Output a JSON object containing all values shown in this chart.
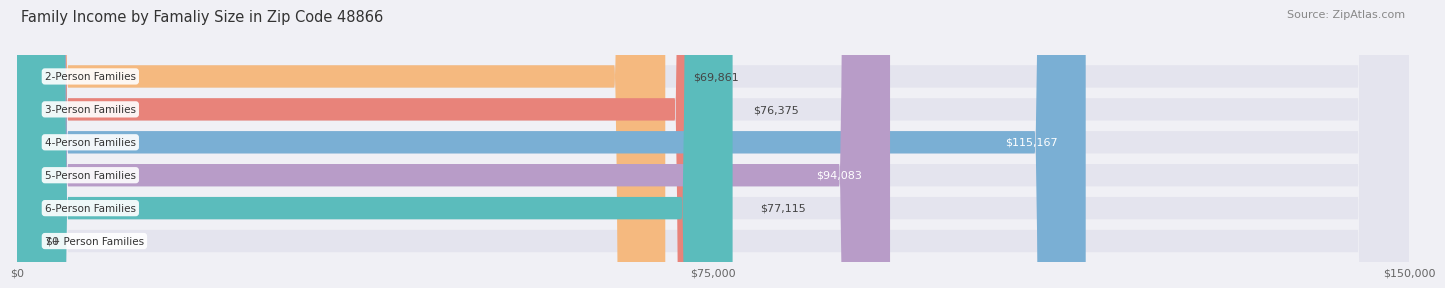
{
  "title": "Family Income by Famaliy Size in Zip Code 48866",
  "source": "Source: ZipAtlas.com",
  "categories": [
    "2-Person Families",
    "3-Person Families",
    "4-Person Families",
    "5-Person Families",
    "6-Person Families",
    "7+ Person Families"
  ],
  "values": [
    69861,
    76375,
    115167,
    94083,
    77115,
    0
  ],
  "bar_colors": [
    "#f5b97f",
    "#e8837a",
    "#7aafd4",
    "#b89cc8",
    "#5bbcbc",
    "#c5c8e8"
  ],
  "x_max": 150000,
  "x_ticks": [
    0,
    75000,
    150000
  ],
  "x_tick_labels": [
    "$0",
    "$75,000",
    "$150,000"
  ],
  "value_labels": [
    "$69,861",
    "$76,375",
    "$115,167",
    "$94,083",
    "$77,115",
    "$0"
  ],
  "value_inside": [
    false,
    false,
    true,
    true,
    false,
    false
  ],
  "background_color": "#f0f0f5",
  "bar_bg_color": "#e4e4ee",
  "title_fontsize": 10.5,
  "source_fontsize": 8,
  "bar_height": 0.68,
  "label_fontsize": 7.5,
  "value_fontsize": 8
}
